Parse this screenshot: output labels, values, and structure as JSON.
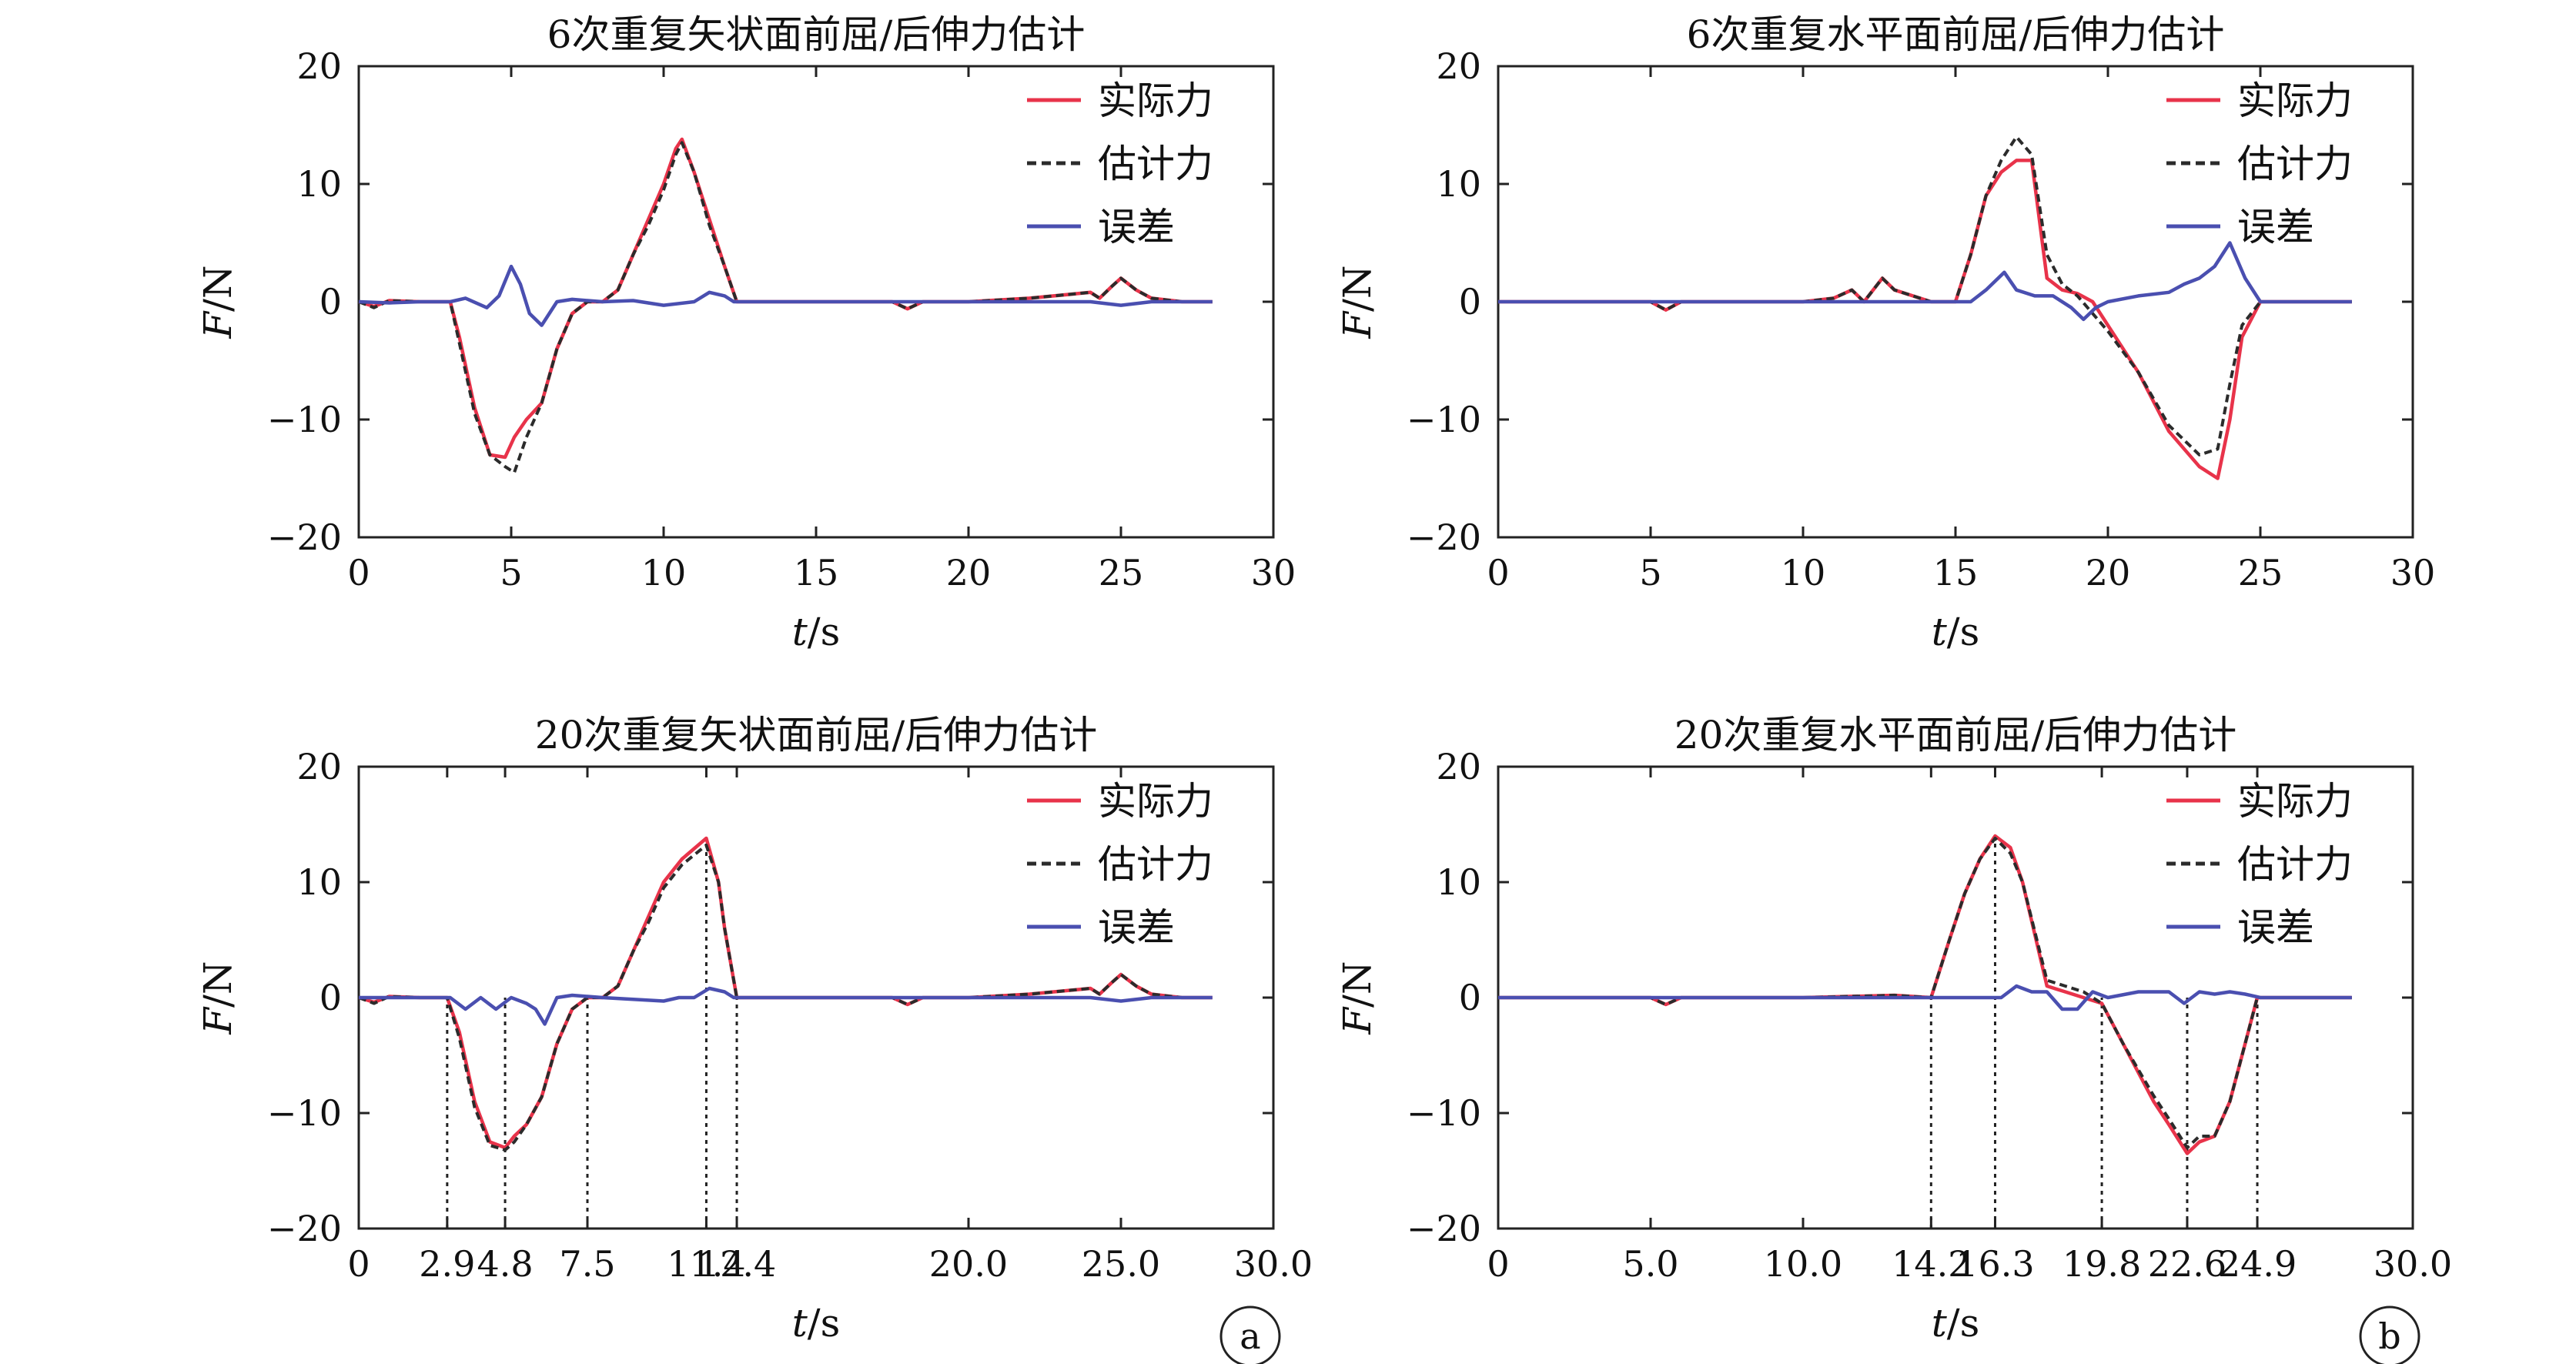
{
  "chart_data": [
    {
      "type": "line",
      "title": "6次重复矢状面前屈/后伸力估计",
      "xlabel_var": "t",
      "xlabel_unit": "/s",
      "ylabel_var": "F",
      "ylabel_unit": "/N",
      "xlim": [
        0,
        30
      ],
      "ylim": [
        -20,
        20
      ],
      "xticks": [
        "0",
        "5",
        "10",
        "15",
        "20",
        "25",
        "30"
      ],
      "xtick_values": [
        0,
        5,
        10,
        15,
        20,
        25,
        30
      ],
      "yticks": [
        "20",
        "10",
        "0",
        "−10",
        "−20"
      ],
      "ytick_values": [
        20,
        10,
        0,
        -10,
        -20
      ],
      "legend": "top-right",
      "vlines": [],
      "series": [
        {
          "name": "实际力",
          "style": "solid",
          "color": "#e8334a",
          "x": [
            0,
            0.5,
            1,
            2,
            3,
            3.3,
            3.8,
            4.3,
            4.8,
            5.1,
            5.5,
            6,
            6.5,
            7,
            7.5,
            8,
            8.5,
            9,
            9.5,
            10,
            10.4,
            10.6,
            11,
            11.5,
            12,
            12.4,
            13,
            15,
            17.5,
            18,
            18.5,
            20,
            22,
            24,
            24.3,
            24.7,
            25,
            25.5,
            26,
            27,
            28
          ],
          "y": [
            0,
            -0.4,
            0.1,
            0,
            0,
            -3,
            -9,
            -13,
            -13.2,
            -11.5,
            -10,
            -8.6,
            -4,
            -1,
            0,
            0,
            1,
            4,
            7,
            10,
            13,
            13.8,
            11,
            7,
            3,
            0,
            0,
            0,
            0,
            -0.6,
            0,
            0,
            0.3,
            0.8,
            0.3,
            1.3,
            2,
            1,
            0.3,
            0,
            0
          ]
        },
        {
          "name": "估计力",
          "style": "dashed",
          "color": "#2b2b2b",
          "x": [
            0,
            0.5,
            1,
            2,
            3,
            3.3,
            3.8,
            4.3,
            4.8,
            5.1,
            5.5,
            6,
            6.5,
            7,
            7.5,
            8,
            8.5,
            9,
            9.5,
            10,
            10.4,
            10.6,
            11,
            11.5,
            12,
            12.4,
            13,
            15,
            17.5,
            18,
            18.5,
            20,
            22,
            24,
            24.3,
            24.7,
            25,
            25.5,
            26,
            27,
            28
          ],
          "y": [
            0,
            -0.5,
            0.1,
            0,
            0,
            -3.5,
            -9.5,
            -13,
            -14,
            -14.5,
            -11.5,
            -8.6,
            -4,
            -1,
            0,
            0,
            1,
            4,
            6.5,
            9.5,
            12.5,
            13.5,
            11,
            6.5,
            3,
            0,
            0,
            0,
            0,
            -0.6,
            0,
            0,
            0.3,
            0.8,
            0.3,
            1.3,
            2,
            1,
            0.3,
            0,
            0
          ]
        },
        {
          "name": "误差",
          "style": "solid",
          "color": "#4a4fb0",
          "x": [
            0,
            1,
            2,
            3,
            3.5,
            4.2,
            4.6,
            5,
            5.3,
            5.6,
            6,
            6.5,
            7,
            8,
            9,
            10,
            11,
            11.5,
            12,
            12.3,
            13,
            18,
            20,
            24,
            25,
            26,
            28
          ],
          "y": [
            0,
            -0.1,
            0,
            0,
            0.3,
            -0.5,
            0.5,
            3,
            1.5,
            -1,
            -2,
            0,
            0.2,
            0,
            0.1,
            -0.3,
            0,
            0.8,
            0.5,
            0,
            0,
            0,
            0,
            0,
            -0.3,
            0,
            0
          ]
        }
      ]
    },
    {
      "type": "line",
      "title": "6次重复水平面前屈/后伸力估计",
      "xlabel_var": "t",
      "xlabel_unit": "/s",
      "ylabel_var": "F",
      "ylabel_unit": "/N",
      "xlim": [
        0,
        30
      ],
      "ylim": [
        -20,
        20
      ],
      "xticks": [
        "0",
        "5",
        "10",
        "15",
        "20",
        "25",
        "30"
      ],
      "xtick_values": [
        0,
        5,
        10,
        15,
        20,
        25,
        30
      ],
      "yticks": [
        "20",
        "10",
        "0",
        "−10",
        "−20"
      ],
      "ytick_values": [
        20,
        10,
        0,
        -10,
        -20
      ],
      "legend": "top-right",
      "vlines": [],
      "series": [
        {
          "name": "实际力",
          "style": "solid",
          "color": "#e8334a",
          "x": [
            0,
            5,
            5.5,
            6,
            10,
            11,
            11.6,
            12,
            12.6,
            13,
            14.2,
            15,
            15.5,
            16,
            16.5,
            17,
            17.5,
            18,
            18.5,
            19,
            19.5,
            20,
            21,
            22,
            23,
            23.6,
            24,
            24.4,
            25,
            26,
            27,
            28
          ],
          "y": [
            0,
            0,
            -0.7,
            0,
            0,
            0.3,
            1,
            0,
            2,
            1,
            0,
            0,
            4,
            9,
            11,
            12,
            12,
            2,
            1,
            0.7,
            0,
            -2,
            -6,
            -11,
            -14,
            -15,
            -10,
            -3,
            0,
            0,
            0,
            0
          ]
        },
        {
          "name": "估计力",
          "style": "dashed",
          "color": "#2b2b2b",
          "x": [
            0,
            5,
            5.5,
            6,
            10,
            11,
            11.6,
            12,
            12.6,
            13,
            14.2,
            15,
            15.5,
            16,
            16.5,
            17,
            17.5,
            18,
            18.5,
            19,
            19.5,
            20,
            21,
            22,
            23,
            23.6,
            24,
            24.4,
            25,
            26,
            27,
            28
          ],
          "y": [
            0,
            0,
            -0.7,
            0,
            0,
            0.3,
            1,
            0,
            2,
            1,
            0,
            0,
            4,
            9,
            12,
            14,
            12.5,
            4,
            1.5,
            0.5,
            -1,
            -2.5,
            -6,
            -10.5,
            -13,
            -12.5,
            -7,
            -2,
            0,
            0,
            0,
            0
          ]
        },
        {
          "name": "误差",
          "style": "solid",
          "color": "#4a4fb0",
          "x": [
            0,
            10,
            14,
            15.5,
            16,
            16.6,
            17,
            17.6,
            18.2,
            18.8,
            19.2,
            19.6,
            20,
            21,
            22,
            22.5,
            23,
            23.5,
            24,
            24.5,
            25,
            26,
            28
          ],
          "y": [
            0,
            0,
            0,
            0,
            1,
            2.5,
            1,
            0.5,
            0.5,
            -0.5,
            -1.5,
            -0.5,
            0,
            0.5,
            0.8,
            1.5,
            2,
            3,
            5,
            2,
            0,
            0,
            0
          ]
        }
      ]
    },
    {
      "type": "line",
      "title": "20次重复矢状面前屈/后伸力估计",
      "xlabel_var": "t",
      "xlabel_unit": "/s",
      "ylabel_var": "F",
      "ylabel_unit": "/N",
      "xlim": [
        0,
        30
      ],
      "ylim": [
        -20,
        20
      ],
      "xticks": [
        "0",
        "2.9",
        "4.8",
        "7.5",
        "11.4",
        "12.4",
        "20.0",
        "25.0",
        "30.0"
      ],
      "xtick_values": [
        0,
        2.9,
        4.8,
        7.5,
        11.4,
        12.4,
        20,
        25,
        30
      ],
      "yticks": [
        "20",
        "10",
        "0",
        "−10",
        "−20"
      ],
      "ytick_values": [
        20,
        10,
        0,
        -10,
        -20
      ],
      "legend": "top-right",
      "vlines": [
        2.9,
        4.8,
        7.5,
        11.4,
        12.4
      ],
      "badge": "a",
      "series": [
        {
          "name": "实际力",
          "style": "solid",
          "color": "#e8334a",
          "x": [
            0,
            0.5,
            1,
            2,
            2.9,
            3.3,
            3.8,
            4.3,
            4.8,
            5.1,
            5.5,
            6,
            6.5,
            7,
            7.5,
            8,
            8.5,
            9,
            9.5,
            10,
            10.6,
            11.4,
            11.8,
            12,
            12.4,
            13,
            15,
            17.5,
            18,
            18.5,
            20,
            22,
            24,
            24.3,
            24.7,
            25,
            25.5,
            26,
            27,
            28
          ],
          "y": [
            0,
            -0.4,
            0.1,
            0,
            0,
            -3,
            -9,
            -12.5,
            -13,
            -12,
            -11,
            -8.6,
            -4,
            -1,
            0,
            0,
            1,
            4,
            7,
            10,
            12,
            13.8,
            10,
            6,
            0,
            0,
            0,
            0,
            -0.6,
            0,
            0,
            0.3,
            0.8,
            0.3,
            1.3,
            2,
            1,
            0.3,
            0,
            0
          ]
        },
        {
          "name": "估计力",
          "style": "dashed",
          "color": "#2b2b2b",
          "x": [
            0,
            0.5,
            1,
            2,
            2.9,
            3.3,
            3.8,
            4.3,
            4.8,
            5.1,
            5.5,
            6,
            6.5,
            7,
            7.5,
            8,
            8.5,
            9,
            9.5,
            10,
            10.6,
            11.4,
            11.8,
            12,
            12.4,
            13,
            15,
            17.5,
            18,
            18.5,
            20,
            22,
            24,
            24.3,
            24.7,
            25,
            25.5,
            26,
            27,
            28
          ],
          "y": [
            0,
            -0.5,
            0.1,
            0,
            0,
            -3.5,
            -9.5,
            -12.8,
            -13.2,
            -12.5,
            -11,
            -8.6,
            -4,
            -1,
            0,
            0,
            1,
            4,
            6.5,
            9.5,
            11.5,
            13.2,
            10,
            6,
            0,
            0,
            0,
            0,
            -0.6,
            0,
            0,
            0.3,
            0.8,
            0.3,
            1.3,
            2,
            1,
            0.3,
            0,
            0
          ]
        },
        {
          "name": "误差",
          "style": "solid",
          "color": "#4a4fb0",
          "x": [
            0,
            2,
            3,
            3.5,
            4,
            4.5,
            5,
            5.5,
            5.8,
            6.1,
            6.5,
            7,
            8,
            10,
            10.5,
            11,
            11.5,
            12,
            12.3,
            13,
            18,
            24,
            25,
            26,
            28
          ],
          "y": [
            0,
            0,
            0,
            -1,
            0,
            -1,
            0,
            -0.5,
            -1,
            -2.3,
            0,
            0.2,
            0,
            -0.3,
            0,
            0,
            0.8,
            0.5,
            0,
            0,
            0,
            0,
            -0.3,
            0,
            0
          ]
        }
      ]
    },
    {
      "type": "line",
      "title": "20次重复水平面前屈/后伸力估计",
      "xlabel_var": "t",
      "xlabel_unit": "/s",
      "ylabel_var": "F",
      "ylabel_unit": "/N",
      "xlim": [
        0,
        30
      ],
      "ylim": [
        -20,
        20
      ],
      "xticks": [
        "0",
        "5.0",
        "10.0",
        "14.2",
        "16.3",
        "19.8",
        "22.6",
        "24.9",
        "30.0"
      ],
      "xtick_values": [
        0,
        5,
        10,
        14.2,
        16.3,
        19.8,
        22.6,
        24.9,
        30
      ],
      "yticks": [
        "20",
        "10",
        "0",
        "−10",
        "−20"
      ],
      "ytick_values": [
        20,
        10,
        0,
        -10,
        -20
      ],
      "legend": "top-right",
      "vlines": [
        14.2,
        16.3,
        19.8,
        22.6,
        24.9
      ],
      "badge": "b",
      "series": [
        {
          "name": "实际力",
          "style": "solid",
          "color": "#e8334a",
          "x": [
            0,
            5,
            5.5,
            6,
            10,
            13,
            14.2,
            14.8,
            15.3,
            15.8,
            16.3,
            16.8,
            17.2,
            18,
            18.6,
            19.2,
            19.8,
            20.5,
            21.5,
            22,
            22.6,
            23,
            23.5,
            24,
            24.5,
            24.9,
            25.5,
            26,
            27,
            28
          ],
          "y": [
            0,
            0,
            -0.6,
            0,
            0,
            0.2,
            0,
            5,
            9,
            12,
            14,
            13,
            10,
            1,
            0.5,
            0,
            -0.5,
            -4,
            -9,
            -11,
            -13.5,
            -12.5,
            -12,
            -9,
            -4,
            0,
            0,
            0,
            0,
            0
          ]
        },
        {
          "name": "估计力",
          "style": "dashed",
          "color": "#2b2b2b",
          "x": [
            0,
            5,
            5.5,
            6,
            10,
            13,
            14.2,
            14.8,
            15.3,
            15.8,
            16.3,
            16.8,
            17.2,
            18,
            18.6,
            19.2,
            19.8,
            20.5,
            21.5,
            22,
            22.6,
            23,
            23.5,
            24,
            24.5,
            24.9,
            25.5,
            26,
            27,
            28
          ],
          "y": [
            0,
            0,
            -0.6,
            0,
            0,
            0.2,
            0,
            5,
            9,
            12,
            13.8,
            12.5,
            10,
            1.5,
            1,
            0.5,
            -0.5,
            -4,
            -8.5,
            -10.5,
            -13,
            -12,
            -12,
            -9,
            -4,
            0,
            0,
            0,
            0,
            0
          ]
        },
        {
          "name": "误差",
          "style": "solid",
          "color": "#4a4fb0",
          "x": [
            0,
            14,
            16.5,
            17,
            17.5,
            18,
            18.5,
            19,
            19.5,
            20,
            21,
            22,
            22.5,
            23,
            23.5,
            24,
            24.5,
            25,
            26,
            28
          ],
          "y": [
            0,
            0,
            0,
            1,
            0.5,
            0.5,
            -1,
            -1,
            0.5,
            0,
            0.5,
            0.5,
            -0.5,
            0.5,
            0.3,
            0.5,
            0.3,
            0,
            0,
            0
          ]
        }
      ]
    }
  ]
}
